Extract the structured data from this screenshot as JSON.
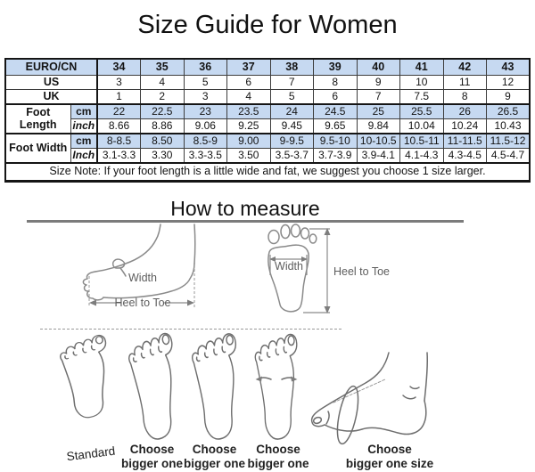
{
  "title": "Size Guide for Women",
  "table": {
    "sizes_label": "EURO/CN",
    "sizes": [
      "34",
      "35",
      "36",
      "37",
      "38",
      "39",
      "40",
      "41",
      "42",
      "43"
    ],
    "rows": [
      {
        "label": "US",
        "values": [
          "3",
          "4",
          "5",
          "6",
          "7",
          "8",
          "9",
          "10",
          "11",
          "12"
        ]
      },
      {
        "label": "UK",
        "values": [
          "1",
          "2",
          "3",
          "4",
          "5",
          "6",
          "7",
          "7.5",
          "8",
          "9"
        ]
      }
    ],
    "groups": [
      {
        "label": "Foot Length",
        "rows": [
          {
            "unit": "cm",
            "highlight": true,
            "values": [
              "22",
              "22.5",
              "23",
              "23.5",
              "24",
              "24.5",
              "25",
              "25.5",
              "26",
              "26.5"
            ]
          },
          {
            "unit": "inch",
            "highlight": false,
            "values": [
              "8.66",
              "8.86",
              "9.06",
              "9.25",
              "9.45",
              "9.65",
              "9.84",
              "10.04",
              "10.24",
              "10.43"
            ]
          }
        ]
      },
      {
        "label": "Foot Width",
        "rows": [
          {
            "unit": "cm",
            "highlight": true,
            "values": [
              "8-8.5",
              "8.50",
              "8.5-9",
              "9.00",
              "9-9.5",
              "9.5-10",
              "10-10.5",
              "10.5-11",
              "11-11.5",
              "11.5-12"
            ]
          },
          {
            "unit": "Inch",
            "highlight": false,
            "values": [
              "3.1-3.3",
              "3.30",
              "3.3-3.5",
              "3.50",
              "3.5-3.7",
              "3.7-3.9",
              "3.9-4.1",
              "4.1-4.3",
              "4.3-4.5",
              "4.5-4.7"
            ]
          }
        ]
      }
    ],
    "note": "Size Note: If your foot length is a little wide and fat, we suggest you choose 1 size larger."
  },
  "measure": {
    "title": "How to measure",
    "side": {
      "width_label": "Width",
      "heel_toe_label": "Heel to Toe"
    },
    "footprint": {
      "width_label": "Width",
      "heel_toe_label": "Heel to Toe"
    }
  },
  "advice": {
    "items": [
      {
        "lines": [
          "Standard"
        ]
      },
      {
        "lines": [
          "Choose",
          "bigger one"
        ]
      },
      {
        "lines": [
          "Choose",
          "bigger one"
        ]
      },
      {
        "lines": [
          "Choose",
          "bigger one"
        ]
      },
      {
        "lines": [
          "Choose",
          "bigger one size"
        ]
      }
    ]
  },
  "colors": {
    "header_blue": "#C6D9F1",
    "rule_gray": "#7B7B7B",
    "sketch_gray": "#8A8A8A"
  }
}
